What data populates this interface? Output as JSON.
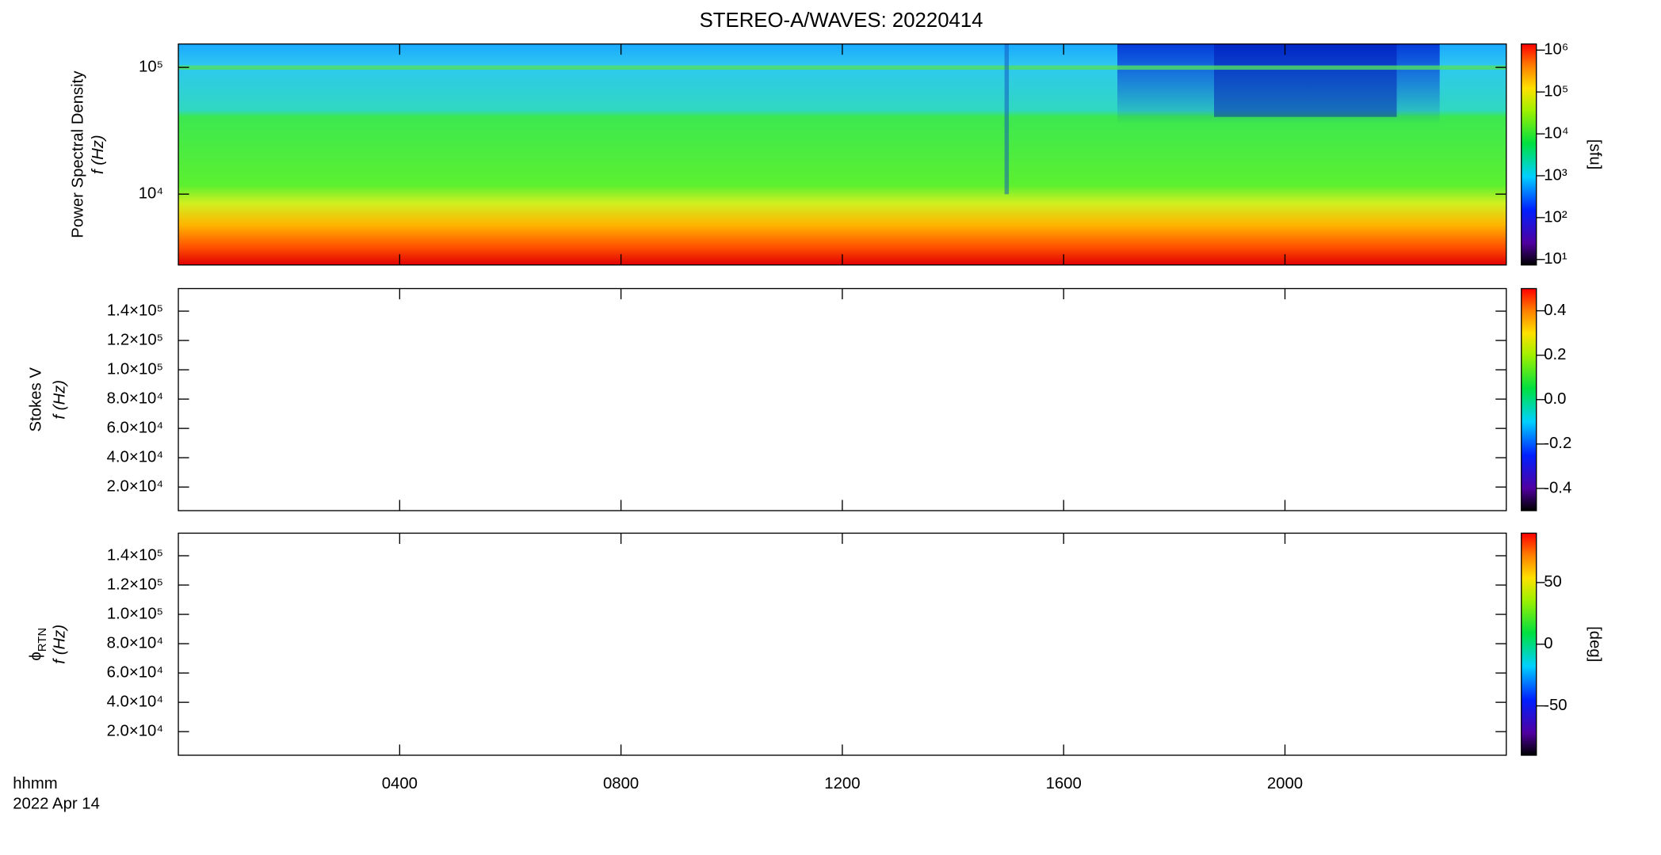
{
  "chart_data": {
    "type": "spectrogram",
    "title": "STEREO-A/WAVES: 20220414",
    "x_label": "hhmm",
    "date_label": "2022 Apr 14",
    "xlim": [
      0,
      24
    ],
    "xticks": [
      {
        "value": 4,
        "label": "0400"
      },
      {
        "value": 8,
        "label": "0800"
      },
      {
        "value": 12,
        "label": "1200"
      },
      {
        "value": 16,
        "label": "1600"
      },
      {
        "value": 20,
        "label": "2000"
      }
    ],
    "panels": [
      {
        "ylabel": "Power Spectral Density",
        "ylabel2": "f (Hz)",
        "ylog": true,
        "ylim": [
          2760,
          153000
        ],
        "yticks": [
          {
            "value": 10000,
            "label": "10⁴"
          },
          {
            "value": 100000,
            "label": "10⁵"
          }
        ],
        "colorbar": {
          "label": "[sfu]",
          "log": true,
          "lim": [
            7.4,
            1400000
          ],
          "ticks": [
            {
              "value": 10,
              "label": "10¹"
            },
            {
              "value": 100,
              "label": "10²"
            },
            {
              "value": 1000,
              "label": "10³"
            },
            {
              "value": 10000,
              "label": "10⁴"
            },
            {
              "value": 100000,
              "label": "10⁵"
            },
            {
              "value": 1000000,
              "label": "10⁶"
            }
          ]
        }
      },
      {
        "ylabel": "Stokes V",
        "ylabel2": "f (Hz)",
        "ylog": false,
        "ylim": [
          3900,
          155400
        ],
        "yticks": [
          {
            "value": 20000,
            "label": "2.0×10⁴"
          },
          {
            "value": 40000,
            "label": "4.0×10⁴"
          },
          {
            "value": 60000,
            "label": "6.0×10⁴"
          },
          {
            "value": 80000,
            "label": "8.0×10⁴"
          },
          {
            "value": 100000,
            "label": "1.0×10⁵"
          },
          {
            "value": 120000,
            "label": "1.2×10⁵"
          },
          {
            "value": 140000,
            "label": "1.4×10⁵"
          }
        ],
        "colorbar": {
          "log": false,
          "lim": [
            -0.5,
            0.5
          ],
          "ticks": [
            {
              "value": -0.4,
              "label": "-0.4"
            },
            {
              "value": -0.2,
              "label": "-0.2"
            },
            {
              "value": 0,
              "label": "0.0"
            },
            {
              "value": 0.2,
              "label": "0.2"
            },
            {
              "value": 0.4,
              "label": "0.4"
            }
          ]
        }
      },
      {
        "ylabel": "ϕ",
        "ylabel_subscript": "RTN",
        "ylabel2": "f (Hz)",
        "ylog": false,
        "ylim": [
          3900,
          155400
        ],
        "yticks": [
          {
            "value": 20000,
            "label": "2.0×10⁴"
          },
          {
            "value": 40000,
            "label": "4.0×10⁴"
          },
          {
            "value": 60000,
            "label": "6.0×10⁴"
          },
          {
            "value": 80000,
            "label": "8.0×10⁴"
          },
          {
            "value": 100000,
            "label": "1.0×10⁵"
          },
          {
            "value": 120000,
            "label": "1.2×10⁵"
          },
          {
            "value": 140000,
            "label": "1.4×10⁵"
          }
        ],
        "colorbar": {
          "label": "[deg]",
          "log": false,
          "lim": [
            -90,
            90
          ],
          "ticks": [
            -50,
            0,
            50
          ]
        }
      }
    ]
  }
}
